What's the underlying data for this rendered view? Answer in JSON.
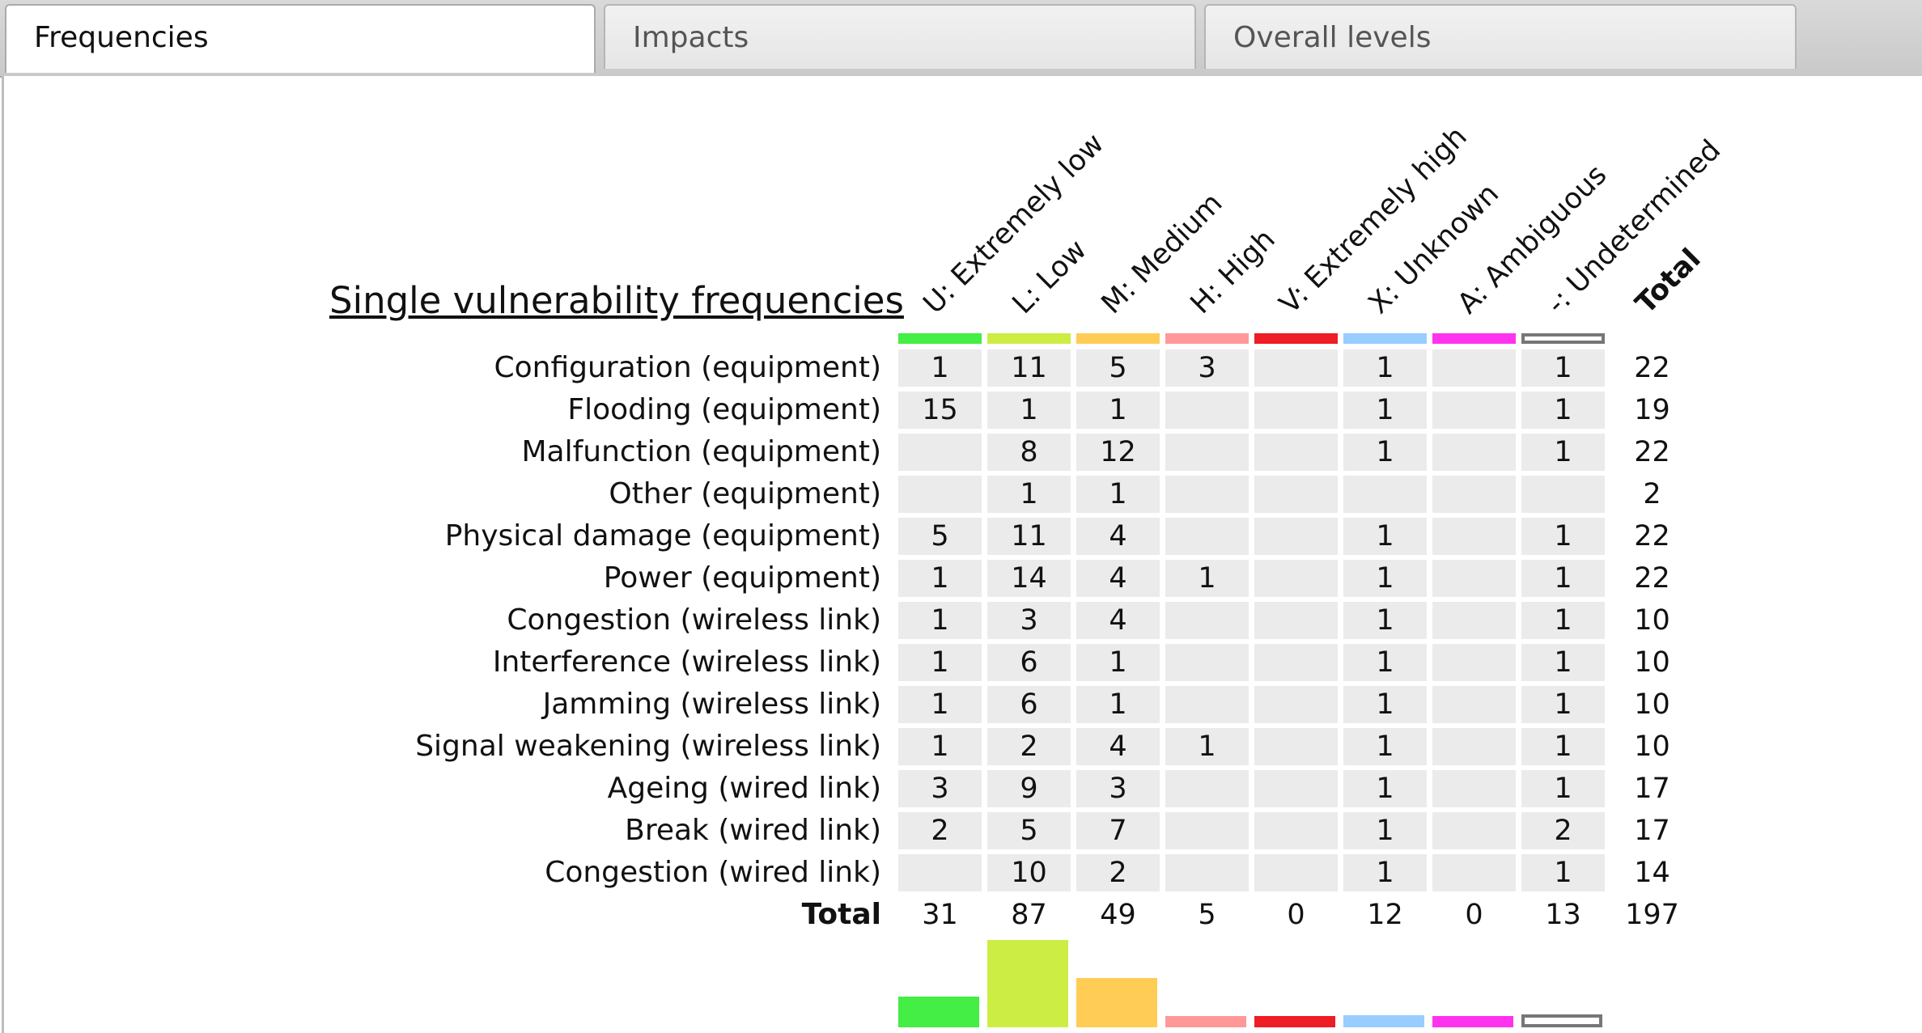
{
  "tabs": [
    {
      "label": "Frequencies",
      "active": true
    },
    {
      "label": "Impacts",
      "active": false
    },
    {
      "label": "Overall levels",
      "active": false
    }
  ],
  "title": "Single vulnerability frequencies",
  "columns": [
    {
      "label": "U: Extremely low",
      "color": "#44ee44"
    },
    {
      "label": "L: Low",
      "color": "#ccee44"
    },
    {
      "label": "M: Medium",
      "color": "#ffcc55"
    },
    {
      "label": "H: High",
      "color": "#ff9999"
    },
    {
      "label": "V: Extremely high",
      "color": "#ee1c24"
    },
    {
      "label": "X: Unknown",
      "color": "#99ccff"
    },
    {
      "label": "A: Ambiguous",
      "color": "#ff33ee"
    },
    {
      "label": "-: Undetermined",
      "color": "#ffffff",
      "outline": "#777777"
    }
  ],
  "total_label": "Total",
  "rows": [
    {
      "label": "Configuration (equipment)",
      "values": [
        "1",
        "11",
        "5",
        "3",
        "",
        "1",
        "",
        "1"
      ],
      "total": "22"
    },
    {
      "label": "Flooding (equipment)",
      "values": [
        "15",
        "1",
        "1",
        "",
        "",
        "1",
        "",
        "1"
      ],
      "total": "19"
    },
    {
      "label": "Malfunction (equipment)",
      "values": [
        "",
        "8",
        "12",
        "",
        "",
        "1",
        "",
        "1"
      ],
      "total": "22"
    },
    {
      "label": "Other (equipment)",
      "values": [
        "",
        "1",
        "1",
        "",
        "",
        "",
        "",
        ""
      ],
      "total": "2"
    },
    {
      "label": "Physical damage (equipment)",
      "values": [
        "5",
        "11",
        "4",
        "",
        "",
        "1",
        "",
        "1"
      ],
      "total": "22"
    },
    {
      "label": "Power (equipment)",
      "values": [
        "1",
        "14",
        "4",
        "1",
        "",
        "1",
        "",
        "1"
      ],
      "total": "22"
    },
    {
      "label": "Congestion (wireless link)",
      "values": [
        "1",
        "3",
        "4",
        "",
        "",
        "1",
        "",
        "1"
      ],
      "total": "10"
    },
    {
      "label": "Interference (wireless link)",
      "values": [
        "1",
        "6",
        "1",
        "",
        "",
        "1",
        "",
        "1"
      ],
      "total": "10"
    },
    {
      "label": "Jamming (wireless link)",
      "values": [
        "1",
        "6",
        "1",
        "",
        "",
        "1",
        "",
        "1"
      ],
      "total": "10"
    },
    {
      "label": "Signal weakening (wireless link)",
      "values": [
        "1",
        "2",
        "4",
        "1",
        "",
        "1",
        "",
        "1"
      ],
      "total": "10"
    },
    {
      "label": "Ageing (wired link)",
      "values": [
        "3",
        "9",
        "3",
        "",
        "",
        "1",
        "",
        "1"
      ],
      "total": "17"
    },
    {
      "label": "Break (wired link)",
      "values": [
        "2",
        "5",
        "7",
        "",
        "",
        "1",
        "",
        "2"
      ],
      "total": "17"
    },
    {
      "label": "Congestion (wired link)",
      "values": [
        "",
        "10",
        "2",
        "",
        "",
        "1",
        "",
        "1"
      ],
      "total": "14"
    }
  ],
  "totals": {
    "label": "Total",
    "values": [
      "31",
      "87",
      "49",
      "5",
      "0",
      "12",
      "0",
      "13"
    ],
    "grand": "197"
  }
}
